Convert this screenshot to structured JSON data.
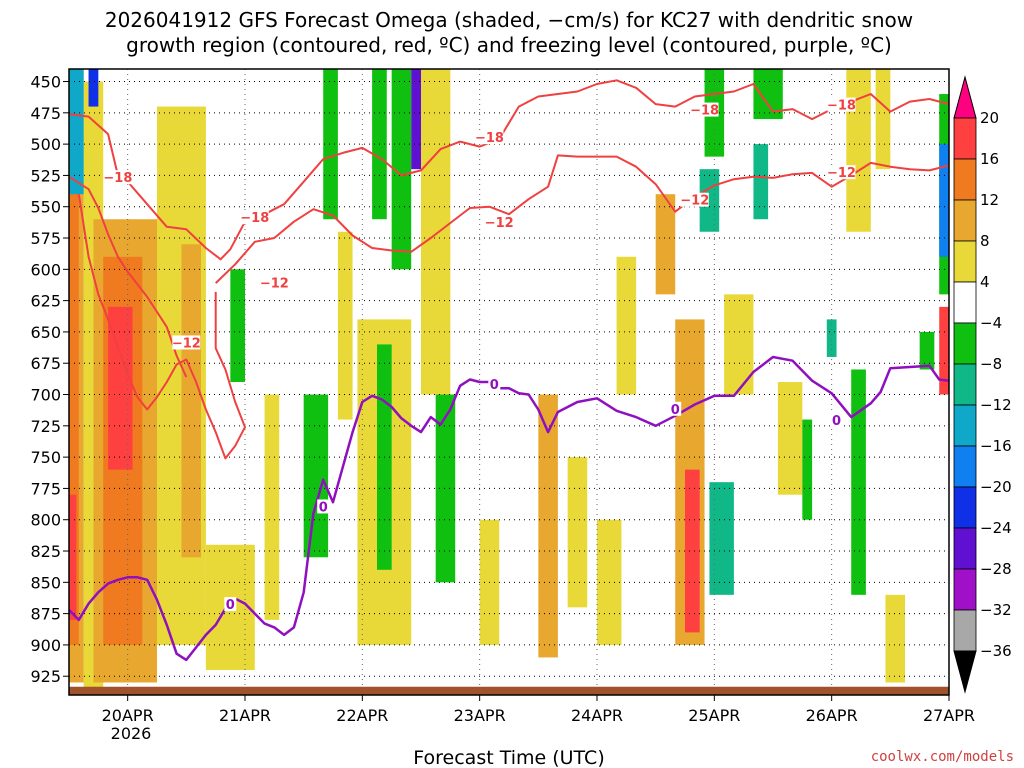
{
  "chart_data": {
    "type": "heatmap",
    "title_line1": "2026041912 GFS Forecast Omega (shaded, −cm/s) for KC27 with dendritic snow",
    "title_line2": "growth region (contoured, red, ºC) and freezing level (contoured, purple, ºC)",
    "xlabel": "Forecast Time (UTC)",
    "credit": "coolwx.com/models",
    "x_ticks": [
      "20APR",
      "21APR",
      "22APR",
      "23APR",
      "24APR",
      "25APR",
      "26APR",
      "27APR"
    ],
    "x_tick_hours": [
      12,
      36,
      60,
      84,
      108,
      132,
      156,
      180
    ],
    "x_sublabel": "2026",
    "xlim_hours": [
      0,
      180
    ],
    "y_ticks": [
      "450",
      "475",
      "500",
      "525",
      "550",
      "575",
      "600",
      "625",
      "650",
      "675",
      "700",
      "725",
      "750",
      "775",
      "800",
      "825",
      "850",
      "875",
      "900",
      "925"
    ],
    "ylim_hpa": [
      440,
      940
    ],
    "y_scale": "reversed (pressure)",
    "surface_pressure_hpa": 935,
    "colorbar": {
      "tick_labels": [
        "20",
        "16",
        "12",
        "8",
        "4",
        "−4",
        "−8",
        "−12",
        "−16",
        "−20",
        "−24",
        "−28",
        "−32",
        "−36"
      ],
      "colors": [
        "#ff0080",
        "#ff4040",
        "#f07a1f",
        "#e8a830",
        "#e8d838",
        "#ffffff",
        "#10c010",
        "#10b888",
        "#10a8c8",
        "#1080f0",
        "#1030e8",
        "#6010d0",
        "#a010c8",
        "#a8a8a8",
        "#000000"
      ]
    },
    "contour_labels": {
      "dgz_minus_18": "−18",
      "dgz_minus_12": "−12",
      "freezing": "0"
    },
    "series": [
      {
        "name": "dgz_minus_18_upper",
        "color": "#f04040",
        "points_hour_hpa": [
          [
            0,
            476
          ],
          [
            4,
            478
          ],
          [
            8,
            492
          ],
          [
            10,
            525
          ],
          [
            12,
            530
          ],
          [
            16,
            548
          ],
          [
            20,
            566
          ],
          [
            24,
            568
          ],
          [
            28,
            583
          ],
          [
            31,
            592
          ],
          [
            33,
            584
          ],
          [
            36,
            562
          ],
          [
            40,
            556
          ],
          [
            44,
            548
          ],
          [
            48,
            530
          ],
          [
            52,
            512
          ],
          [
            56,
            507
          ],
          [
            60,
            503
          ],
          [
            64,
            512
          ],
          [
            68,
            525
          ],
          [
            72,
            521
          ],
          [
            76,
            504
          ],
          [
            80,
            498
          ],
          [
            84,
            502
          ],
          [
            88,
            496
          ],
          [
            92,
            470
          ],
          [
            96,
            462
          ],
          [
            100,
            460
          ],
          [
            104,
            458
          ],
          [
            108,
            452
          ],
          [
            112,
            449
          ],
          [
            116,
            455
          ],
          [
            120,
            468
          ],
          [
            124,
            470
          ],
          [
            128,
            462
          ],
          [
            132,
            460
          ],
          [
            136,
            458
          ],
          [
            140,
            452
          ],
          [
            144,
            474
          ],
          [
            148,
            472
          ],
          [
            152,
            480
          ],
          [
            156,
            472
          ],
          [
            160,
            466
          ],
          [
            164,
            460
          ],
          [
            168,
            474
          ],
          [
            172,
            466
          ],
          [
            176,
            464
          ],
          [
            180,
            468
          ]
        ]
      },
      {
        "name": "dgz_minus_12_upper",
        "color": "#f04040",
        "points_hour_hpa": [
          [
            30,
            611
          ],
          [
            34,
            596
          ],
          [
            38,
            578
          ],
          [
            42,
            575
          ],
          [
            46,
            562
          ],
          [
            50,
            552
          ],
          [
            54,
            557
          ],
          [
            58,
            573
          ],
          [
            62,
            583
          ],
          [
            66,
            585
          ],
          [
            70,
            586
          ],
          [
            74,
            575
          ],
          [
            78,
            563
          ],
          [
            82,
            551
          ],
          [
            86,
            550
          ],
          [
            90,
            556
          ],
          [
            94,
            544
          ],
          [
            98,
            534
          ],
          [
            100,
            509
          ],
          [
            104,
            510
          ],
          [
            108,
            510
          ],
          [
            112,
            510
          ],
          [
            116,
            518
          ],
          [
            120,
            532
          ],
          [
            124,
            554
          ],
          [
            128,
            542
          ],
          [
            132,
            533
          ],
          [
            136,
            528
          ],
          [
            140,
            526
          ],
          [
            144,
            527
          ],
          [
            148,
            524
          ],
          [
            152,
            523
          ],
          [
            156,
            534
          ],
          [
            160,
            525
          ],
          [
            164,
            515
          ],
          [
            168,
            518
          ],
          [
            172,
            520
          ],
          [
            176,
            521
          ],
          [
            180,
            517
          ]
        ]
      },
      {
        "name": "dgz_minus_18_lower",
        "color": "#f04040",
        "points_hour_hpa": [
          [
            0,
            526
          ],
          [
            4,
            536
          ],
          [
            6,
            551
          ],
          [
            8,
            572
          ],
          [
            10,
            590
          ],
          [
            12,
            602
          ],
          [
            16,
            622
          ],
          [
            20,
            646
          ],
          [
            22,
            669
          ],
          [
            24,
            686
          ]
        ]
      },
      {
        "name": "dgz_minus_12_lower",
        "color": "#f04040",
        "points_hour_hpa": [
          [
            2,
            540
          ],
          [
            4,
            590
          ],
          [
            6,
            620
          ],
          [
            8,
            640
          ],
          [
            10,
            662
          ],
          [
            12,
            684
          ],
          [
            14,
            702
          ],
          [
            16,
            712
          ],
          [
            18,
            702
          ],
          [
            20,
            690
          ],
          [
            22,
            676
          ],
          [
            24,
            672
          ],
          [
            26,
            690
          ],
          [
            28,
            712
          ],
          [
            30,
            730
          ],
          [
            32,
            751
          ],
          [
            34,
            741
          ],
          [
            36,
            726
          ],
          [
            34,
            706
          ],
          [
            32,
            680
          ],
          [
            30,
            663
          ],
          [
            30,
            636
          ],
          [
            30,
            618
          ]
        ]
      },
      {
        "name": "freezing_level",
        "color": "#9010c0",
        "points_hour_hpa": [
          [
            0,
            872
          ],
          [
            2,
            880
          ],
          [
            4,
            867
          ],
          [
            6,
            858
          ],
          [
            8,
            851
          ],
          [
            10,
            848
          ],
          [
            12,
            846
          ],
          [
            14,
            846
          ],
          [
            16,
            848
          ],
          [
            18,
            864
          ],
          [
            20,
            884
          ],
          [
            22,
            907
          ],
          [
            24,
            912
          ],
          [
            26,
            902
          ],
          [
            28,
            892
          ],
          [
            30,
            884
          ],
          [
            32,
            871
          ],
          [
            34,
            863
          ],
          [
            36,
            867
          ],
          [
            38,
            875
          ],
          [
            40,
            883
          ],
          [
            42,
            886
          ],
          [
            44,
            892
          ],
          [
            46,
            886
          ],
          [
            48,
            858
          ],
          [
            50,
            795
          ],
          [
            52,
            768
          ],
          [
            54,
            786
          ],
          [
            56,
            758
          ],
          [
            58,
            730
          ],
          [
            60,
            706
          ],
          [
            62,
            701
          ],
          [
            64,
            704
          ],
          [
            66,
            710
          ],
          [
            68,
            719
          ],
          [
            70,
            725
          ],
          [
            72,
            730
          ],
          [
            74,
            718
          ],
          [
            76,
            724
          ],
          [
            78,
            712
          ],
          [
            80,
            693
          ],
          [
            82,
            688
          ],
          [
            84,
            690
          ],
          [
            86,
            690
          ],
          [
            88,
            695
          ],
          [
            90,
            695
          ],
          [
            92,
            699
          ],
          [
            94,
            700
          ],
          [
            96,
            712
          ],
          [
            98,
            730
          ],
          [
            100,
            714
          ],
          [
            104,
            706
          ],
          [
            108,
            703
          ],
          [
            112,
            713
          ],
          [
            116,
            718
          ],
          [
            120,
            725
          ],
          [
            124,
            717
          ],
          [
            128,
            708
          ],
          [
            132,
            701
          ],
          [
            136,
            701
          ],
          [
            140,
            682
          ],
          [
            144,
            670
          ],
          [
            148,
            673
          ],
          [
            152,
            689
          ],
          [
            156,
            699
          ],
          [
            160,
            718
          ],
          [
            164,
            707
          ],
          [
            166,
            698
          ],
          [
            168,
            679
          ],
          [
            172,
            678
          ],
          [
            176,
            677
          ],
          [
            178,
            688
          ],
          [
            180,
            689
          ]
        ]
      }
    ],
    "shaded_regions": [
      {
        "t0": 3,
        "t1": 7,
        "p0": 450,
        "p1": 940,
        "omega": 4
      },
      {
        "t0": 5,
        "t1": 18,
        "p0": 560,
        "p1": 930,
        "omega": 8
      },
      {
        "t0": 7,
        "t1": 15,
        "p0": 590,
        "p1": 900,
        "omega": 12
      },
      {
        "t0": 8,
        "t1": 13,
        "p0": 630,
        "p1": 760,
        "omega": 16
      },
      {
        "t0": 0,
        "t1": 3,
        "p0": 440,
        "p1": 930,
        "omega": 8
      },
      {
        "t0": 0,
        "t1": 2,
        "p0": 520,
        "p1": 900,
        "omega": 12
      },
      {
        "t0": 0,
        "t1": 1.5,
        "p0": 780,
        "p1": 880,
        "omega": 16
      },
      {
        "t0": 0,
        "t1": 3,
        "p0": 440,
        "p1": 540,
        "omega": -16
      },
      {
        "t0": 4,
        "t1": 6,
        "p0": 440,
        "p1": 470,
        "omega": -24
      },
      {
        "t0": 18,
        "t1": 28,
        "p0": 470,
        "p1": 900,
        "omega": 4
      },
      {
        "t0": 23,
        "t1": 27,
        "p0": 580,
        "p1": 830,
        "omega": 8
      },
      {
        "t0": 33,
        "t1": 36,
        "p0": 600,
        "p1": 690,
        "omega": -8
      },
      {
        "t0": 28,
        "t1": 38,
        "p0": 820,
        "p1": 920,
        "omega": 4
      },
      {
        "t0": 40,
        "t1": 43,
        "p0": 700,
        "p1": 880,
        "omega": 4
      },
      {
        "t0": 52,
        "t1": 55,
        "p0": 440,
        "p1": 560,
        "omega": -8
      },
      {
        "t0": 55,
        "t1": 58,
        "p0": 570,
        "p1": 720,
        "omega": 4
      },
      {
        "t0": 62,
        "t1": 65,
        "p0": 440,
        "p1": 560,
        "omega": -8
      },
      {
        "t0": 66,
        "t1": 70,
        "p0": 440,
        "p1": 600,
        "omega": -8
      },
      {
        "t0": 70,
        "t1": 73,
        "p0": 440,
        "p1": 520,
        "omega": -28
      },
      {
        "t0": 59,
        "t1": 70,
        "p0": 640,
        "p1": 900,
        "omega": 4
      },
      {
        "t0": 63,
        "t1": 66,
        "p0": 660,
        "p1": 840,
        "omega": -8
      },
      {
        "t0": 48,
        "t1": 53,
        "p0": 700,
        "p1": 830,
        "omega": -8
      },
      {
        "t0": 75,
        "t1": 79,
        "p0": 700,
        "p1": 850,
        "omega": -8
      },
      {
        "t0": 72,
        "t1": 78,
        "p0": 440,
        "p1": 700,
        "omega": 4
      },
      {
        "t0": 84,
        "t1": 88,
        "p0": 800,
        "p1": 900,
        "omega": 4
      },
      {
        "t0": 96,
        "t1": 100,
        "p0": 700,
        "p1": 910,
        "omega": 8
      },
      {
        "t0": 102,
        "t1": 106,
        "p0": 750,
        "p1": 870,
        "omega": 4
      },
      {
        "t0": 124,
        "t1": 130,
        "p0": 640,
        "p1": 900,
        "omega": 8
      },
      {
        "t0": 126,
        "t1": 129,
        "p0": 760,
        "p1": 890,
        "omega": 20
      },
      {
        "t0": 120,
        "t1": 124,
        "p0": 540,
        "p1": 620,
        "omega": 8
      },
      {
        "t0": 130,
        "t1": 134,
        "p0": 440,
        "p1": 510,
        "omega": -8
      },
      {
        "t0": 129,
        "t1": 133,
        "p0": 520,
        "p1": 570,
        "omega": -12
      },
      {
        "t0": 131,
        "t1": 136,
        "p0": 770,
        "p1": 860,
        "omega": -12
      },
      {
        "t0": 140,
        "t1": 146,
        "p0": 440,
        "p1": 480,
        "omega": -8
      },
      {
        "t0": 140,
        "t1": 143,
        "p0": 500,
        "p1": 560,
        "omega": -12
      },
      {
        "t0": 134,
        "t1": 140,
        "p0": 620,
        "p1": 700,
        "omega": 4
      },
      {
        "t0": 145,
        "t1": 150,
        "p0": 690,
        "p1": 780,
        "omega": 4
      },
      {
        "t0": 150,
        "t1": 152,
        "p0": 720,
        "p1": 800,
        "omega": -8
      },
      {
        "t0": 155,
        "t1": 157,
        "p0": 640,
        "p1": 670,
        "omega": -12
      },
      {
        "t0": 160,
        "t1": 163,
        "p0": 680,
        "p1": 860,
        "omega": -8
      },
      {
        "t0": 159,
        "t1": 164,
        "p0": 440,
        "p1": 570,
        "omega": 4
      },
      {
        "t0": 165,
        "t1": 168,
        "p0": 440,
        "p1": 520,
        "omega": 4
      },
      {
        "t0": 174,
        "t1": 177,
        "p0": 650,
        "p1": 680,
        "omega": -8
      },
      {
        "t0": 178,
        "t1": 180,
        "p0": 460,
        "p1": 620,
        "omega": -8
      },
      {
        "t0": 178,
        "t1": 180,
        "p0": 500,
        "p1": 590,
        "omega": -20
      },
      {
        "t0": 178,
        "t1": 180,
        "p0": 630,
        "p1": 700,
        "omega": 16
      },
      {
        "t0": 167,
        "t1": 171,
        "p0": 860,
        "p1": 930,
        "omega": 4
      },
      {
        "t0": 108,
        "t1": 113,
        "p0": 800,
        "p1": 900,
        "omega": 4
      },
      {
        "t0": 112,
        "t1": 116,
        "p0": 590,
        "p1": 700,
        "omega": 4
      }
    ]
  }
}
